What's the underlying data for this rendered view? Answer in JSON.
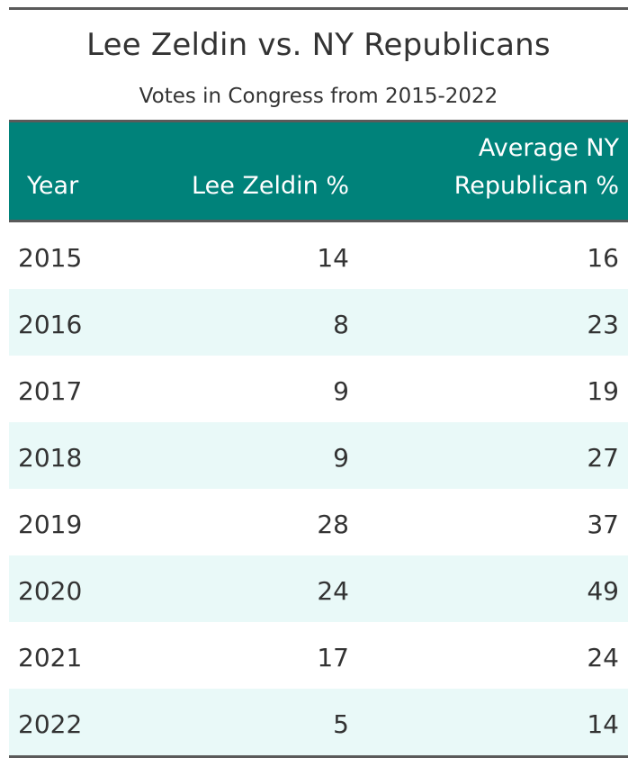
{
  "chart_data": {
    "type": "table",
    "title": "Lee Zeldin vs. NY Republicans",
    "subtitle": "Votes in Congress from 2015-2022",
    "columns": [
      "Year",
      "Lee Zeldin %",
      "Average NY Republican %"
    ],
    "header_lines": {
      "year": [
        "Year"
      ],
      "lee_zeldin": [
        "Lee Zeldin %"
      ],
      "average_ny": [
        "Average NY",
        "Republican %"
      ]
    },
    "rows": [
      {
        "year": "2015",
        "lee_zeldin": 14,
        "average_ny": 16
      },
      {
        "year": "2016",
        "lee_zeldin": 8,
        "average_ny": 23
      },
      {
        "year": "2017",
        "lee_zeldin": 9,
        "average_ny": 19
      },
      {
        "year": "2018",
        "lee_zeldin": 9,
        "average_ny": 27
      },
      {
        "year": "2019",
        "lee_zeldin": 28,
        "average_ny": 37
      },
      {
        "year": "2020",
        "lee_zeldin": 24,
        "average_ny": 49
      },
      {
        "year": "2021",
        "lee_zeldin": 17,
        "average_ny": 24
      },
      {
        "year": "2022",
        "lee_zeldin": 5,
        "average_ny": 14
      }
    ]
  },
  "colors": {
    "header_background": "#00827a",
    "header_text": "#ffffff",
    "alternate_row": "#e9f9f8",
    "rule": "#5a5a5a",
    "body_text": "#333333"
  }
}
